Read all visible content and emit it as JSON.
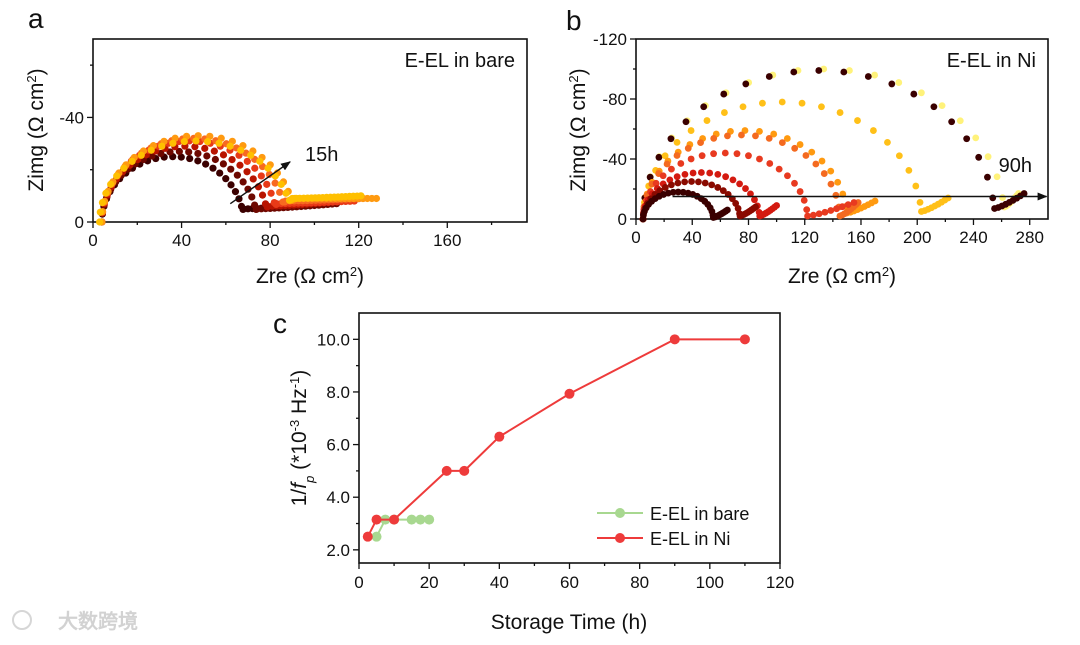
{
  "chart_data": [
    {
      "type": "scatter",
      "panel_label": "a",
      "title": "E-EL in bare",
      "xlabel": "Zre (Ω cm",
      "xlabel_sup": "2",
      "xlabel_end": ")",
      "ylabel": "Zimg (Ω cm",
      "ylabel_sup": "2",
      "ylabel_end": ")",
      "xlim": [
        0,
        196
      ],
      "ylim": [
        0,
        -70
      ],
      "xticks": [
        0,
        40,
        80,
        120,
        160
      ],
      "yticks": [
        0,
        -40
      ],
      "annotation": "15h",
      "arrow": {
        "from": [
          62,
          7
        ],
        "to": [
          89,
          23
        ]
      },
      "series": [
        {
          "color": "#3b0000",
          "r0": 4,
          "arc_end": 68,
          "peak": 25,
          "valley": 5,
          "tail_end": 104,
          "tail_z": 7
        },
        {
          "color": "#6e0800",
          "r0": 4,
          "arc_end": 74,
          "peak": 27,
          "valley": 5,
          "tail_end": 110,
          "tail_z": 7
        },
        {
          "color": "#b81400",
          "r0": 4,
          "arc_end": 79,
          "peak": 29,
          "valley": 6,
          "tail_end": 114,
          "tail_z": 8
        },
        {
          "color": "#e83a18",
          "r0": 4,
          "arc_end": 83,
          "peak": 31,
          "valley": 7,
          "tail_end": 118,
          "tail_z": 8
        },
        {
          "color": "#f86a20",
          "r0": 4,
          "arc_end": 87,
          "peak": 32,
          "valley": 8,
          "tail_end": 122,
          "tail_z": 9
        },
        {
          "color": "#ff9a10",
          "r0": 4,
          "arc_end": 91,
          "peak": 33,
          "valley": 9,
          "tail_end": 128,
          "tail_z": 9
        },
        {
          "color": "#ffc000",
          "r0": 3,
          "arc_end": 90,
          "peak": 31,
          "valley": 9,
          "tail_end": 121,
          "tail_z": 10
        }
      ]
    },
    {
      "type": "scatter",
      "panel_label": "b",
      "title": "E-EL in Ni",
      "xlabel": "Zre (Ω cm",
      "xlabel_sup": "2",
      "xlabel_end": ")",
      "ylabel": "Zimg (Ω cm",
      "ylabel_sup": "2",
      "ylabel_end": ")",
      "xlim": [
        0,
        293
      ],
      "ylim": [
        0,
        -120
      ],
      "xticks": [
        0,
        40,
        80,
        120,
        160,
        200,
        240,
        280
      ],
      "yticks": [
        0,
        -40,
        -80,
        -120
      ],
      "annotation": "90h",
      "arrow": {
        "from": [
          26,
          15
        ],
        "to": [
          292,
          15
        ]
      },
      "series": [
        {
          "color": "#fff27a",
          "r0": 5,
          "arc_end": 262,
          "peak": 100,
          "valley": 8,
          "tail_end": 272,
          "tail_z": 17
        },
        {
          "color": "#3a0000",
          "r0": 5,
          "arc_end": 255,
          "peak": 99,
          "valley": 7,
          "tail_end": 276,
          "tail_z": 17
        },
        {
          "color": "#ffc018",
          "r0": 5,
          "arc_end": 203,
          "peak": 78,
          "valley": 5,
          "tail_end": 222,
          "tail_z": 14
        },
        {
          "color": "#ff9a10",
          "r0": 5,
          "arc_end": 150,
          "peak": 59,
          "valley": 4,
          "tail_end": 170,
          "tail_z": 12
        },
        {
          "color": "#f46a20",
          "r0": 5,
          "arc_end": 145,
          "peak": 56,
          "valley": 2,
          "tail_end": 158,
          "tail_z": 11
        },
        {
          "color": "#e83a20",
          "r0": 5,
          "arc_end": 122,
          "peak": 44,
          "valley": 2,
          "tail_end": 155,
          "tail_z": 11
        },
        {
          "color": "#d41a10",
          "r0": 5,
          "arc_end": 88,
          "peak": 31,
          "valley": 2,
          "tail_end": 100,
          "tail_z": 9
        },
        {
          "color": "#8a0a00",
          "r0": 5,
          "arc_end": 74,
          "peak": 25,
          "valley": 2,
          "tail_end": 85,
          "tail_z": 8
        },
        {
          "color": "#3a0000",
          "r0": 5,
          "arc_end": 55,
          "peak": 18,
          "valley": 1,
          "tail_end": 65,
          "tail_z": 6
        }
      ]
    },
    {
      "type": "line",
      "panel_label": "c",
      "xlabel": "Storage Time (h)",
      "ylabel_prefix": "1/",
      "ylabel_f": "f",
      "ylabel_sub": "p",
      "ylabel_mid": " (*10",
      "ylabel_sup1": "-3",
      "ylabel_hz": " Hz",
      "ylabel_sup2": "-1",
      "ylabel_end": ")",
      "xlim": [
        0,
        120
      ],
      "ylim": [
        1.5,
        11.0
      ],
      "xticks": [
        0,
        20,
        40,
        60,
        80,
        100,
        120
      ],
      "yticks": [
        "2.0",
        "4.0",
        "6.0",
        "8.0",
        "10.0"
      ],
      "legend_position": "bottom-right",
      "series": [
        {
          "name": "E-EL in bare",
          "color": "#a8d890",
          "x": [
            5,
            7.5,
            10,
            15,
            17.5,
            20
          ],
          "y": [
            2.5,
            3.15,
            3.15,
            3.15,
            3.15,
            3.15
          ]
        },
        {
          "name": "E-EL in Ni",
          "color": "#ee3b3b",
          "x": [
            2.5,
            5,
            10,
            25,
            30,
            40,
            60,
            90,
            110
          ],
          "y": [
            2.5,
            3.15,
            3.15,
            5.0,
            5.0,
            6.3,
            7.93,
            10.0,
            10.0
          ]
        }
      ]
    }
  ],
  "watermark": "大数跨境"
}
